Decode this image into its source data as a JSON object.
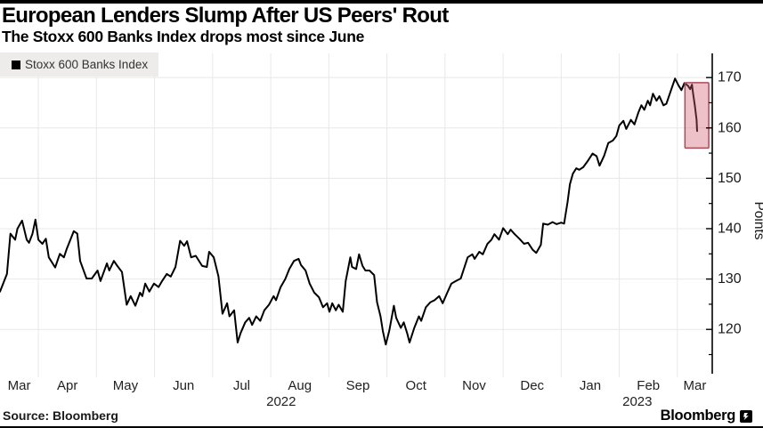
{
  "header": {
    "title": "European Lenders Slump After US Peers' Rout",
    "subtitle": "The Stoxx 600 Banks Index drops most since June"
  },
  "legend": {
    "label": "Stoxx 600 Banks Index",
    "marker_color": "#000000"
  },
  "source": {
    "label": "Source: Bloomberg"
  },
  "branding": {
    "wordmark": "Bloomberg"
  },
  "colors": {
    "accent_bar": "#000000",
    "line": "#000000",
    "grid": "#e8e8e8",
    "axis": "#000000",
    "tick_label": "#1a1a1a",
    "month_label": "#222222",
    "legend_bg": "#edecea",
    "highlight_fill": "#d25b6e",
    "highlight_stroke": "#ae4a57"
  },
  "chart_data": {
    "type": "line",
    "title": "European Lenders Slump After US Peers' Rout",
    "subtitle": "The Stoxx 600 Banks Index drops most since June",
    "ylabel": "Points",
    "grid": true,
    "legend_position": "top-left",
    "x_unit": "months since 2022-03-01 (0 = Mar 1 2022, 12 = Mar 1 2023)",
    "x_range": [
      0.34,
      12.6
    ],
    "ylim": [
      111.2,
      174.8
    ],
    "y_axis": {
      "label": "Points",
      "major_ticks": [
        120,
        130,
        140,
        150,
        160,
        170
      ],
      "minor_ticks": [
        115,
        125,
        135,
        145,
        155,
        165
      ]
    },
    "x_axis": {
      "ticks": [
        {
          "label": "Mar",
          "t": 0.67
        },
        {
          "label": "Apr",
          "t": 1.5
        },
        {
          "label": "May",
          "t": 2.5
        },
        {
          "label": "Jun",
          "t": 3.5
        },
        {
          "label": "Jul",
          "t": 4.5
        },
        {
          "label": "Aug",
          "t": 5.5
        },
        {
          "label": "Sep",
          "t": 6.5
        },
        {
          "label": "Oct",
          "t": 7.5
        },
        {
          "label": "Nov",
          "t": 8.5
        },
        {
          "label": "Dec",
          "t": 9.5
        },
        {
          "label": "Jan",
          "t": 10.5
        },
        {
          "label": "Feb",
          "t": 11.5
        },
        {
          "label": "Mar",
          "t": 12.3
        }
      ],
      "year_labels": [
        {
          "label": "2022",
          "t": 5.18
        },
        {
          "label": "2023",
          "t": 11.31
        }
      ]
    },
    "highlight_box": {
      "t0": 12.13,
      "t1": 12.54,
      "v0": 156.0,
      "v1": 169.0
    },
    "series": [
      {
        "name": "Stoxx 600 Banks Index",
        "color": "#000000",
        "points": [
          [
            0.34,
            127.5
          ],
          [
            0.46,
            131.0
          ],
          [
            0.52,
            139.0
          ],
          [
            0.6,
            137.8
          ],
          [
            0.64,
            140.0
          ],
          [
            0.72,
            141.6
          ],
          [
            0.8,
            137.8
          ],
          [
            0.84,
            137.2
          ],
          [
            0.9,
            139.0
          ],
          [
            0.95,
            141.8
          ],
          [
            1.0,
            137.8
          ],
          [
            1.07,
            137.0
          ],
          [
            1.13,
            138.0
          ],
          [
            1.18,
            134.3
          ],
          [
            1.29,
            132.3
          ],
          [
            1.37,
            135.0
          ],
          [
            1.44,
            134.3
          ],
          [
            1.49,
            136.0
          ],
          [
            1.61,
            139.5
          ],
          [
            1.67,
            139.0
          ],
          [
            1.72,
            133.6
          ],
          [
            1.83,
            130.1
          ],
          [
            1.92,
            130.1
          ],
          [
            2.02,
            131.7
          ],
          [
            2.07,
            129.6
          ],
          [
            2.18,
            133.1
          ],
          [
            2.22,
            131.7
          ],
          [
            2.3,
            133.6
          ],
          [
            2.36,
            132.6
          ],
          [
            2.44,
            131.4
          ],
          [
            2.52,
            124.9
          ],
          [
            2.59,
            126.6
          ],
          [
            2.67,
            124.7
          ],
          [
            2.75,
            127.3
          ],
          [
            2.79,
            126.6
          ],
          [
            2.84,
            129.1
          ],
          [
            2.91,
            127.5
          ],
          [
            2.99,
            129.1
          ],
          [
            3.07,
            128.4
          ],
          [
            3.13,
            129.6
          ],
          [
            3.21,
            131.0
          ],
          [
            3.28,
            130.5
          ],
          [
            3.36,
            132.4
          ],
          [
            3.44,
            137.6
          ],
          [
            3.51,
            136.6
          ],
          [
            3.56,
            137.5
          ],
          [
            3.63,
            134.3
          ],
          [
            3.71,
            134.6
          ],
          [
            3.82,
            132.6
          ],
          [
            3.9,
            132.4
          ],
          [
            3.94,
            135.4
          ],
          [
            4.02,
            134.3
          ],
          [
            4.1,
            130.5
          ],
          [
            4.17,
            123.1
          ],
          [
            4.25,
            125.2
          ],
          [
            4.29,
            122.6
          ],
          [
            4.37,
            123.8
          ],
          [
            4.43,
            117.4
          ],
          [
            4.48,
            119.2
          ],
          [
            4.56,
            121.4
          ],
          [
            4.63,
            122.3
          ],
          [
            4.68,
            120.9
          ],
          [
            4.75,
            122.6
          ],
          [
            4.82,
            121.7
          ],
          [
            4.89,
            123.8
          ],
          [
            4.97,
            124.9
          ],
          [
            5.05,
            126.6
          ],
          [
            5.09,
            125.8
          ],
          [
            5.17,
            128.4
          ],
          [
            5.25,
            130.0
          ],
          [
            5.32,
            132.0
          ],
          [
            5.4,
            133.6
          ],
          [
            5.48,
            134.0
          ],
          [
            5.52,
            132.8
          ],
          [
            5.6,
            131.7
          ],
          [
            5.67,
            129.1
          ],
          [
            5.75,
            127.3
          ],
          [
            5.83,
            126.4
          ],
          [
            5.9,
            124.4
          ],
          [
            5.97,
            125.2
          ],
          [
            6.01,
            123.5
          ],
          [
            6.06,
            125.2
          ],
          [
            6.12,
            123.8
          ],
          [
            6.17,
            124.9
          ],
          [
            6.24,
            123.5
          ],
          [
            6.29,
            129.6
          ],
          [
            6.37,
            134.3
          ],
          [
            6.4,
            132.4
          ],
          [
            6.47,
            132.0
          ],
          [
            6.52,
            134.9
          ],
          [
            6.58,
            132.6
          ],
          [
            6.63,
            131.7
          ],
          [
            6.7,
            131.7
          ],
          [
            6.78,
            130.8
          ],
          [
            6.83,
            125.4
          ],
          [
            6.89,
            122.6
          ],
          [
            6.93,
            119.7
          ],
          [
            6.98,
            117.0
          ],
          [
            7.04,
            119.7
          ],
          [
            7.12,
            124.7
          ],
          [
            7.16,
            122.3
          ],
          [
            7.24,
            120.3
          ],
          [
            7.29,
            121.4
          ],
          [
            7.35,
            119.2
          ],
          [
            7.39,
            117.4
          ],
          [
            7.47,
            120.3
          ],
          [
            7.55,
            122.6
          ],
          [
            7.59,
            121.7
          ],
          [
            7.67,
            124.4
          ],
          [
            7.75,
            125.4
          ],
          [
            7.82,
            125.8
          ],
          [
            7.9,
            126.6
          ],
          [
            7.96,
            125.2
          ],
          [
            8.04,
            127.3
          ],
          [
            8.11,
            129.1
          ],
          [
            8.19,
            129.6
          ],
          [
            8.27,
            130.1
          ],
          [
            8.31,
            131.5
          ],
          [
            8.39,
            134.3
          ],
          [
            8.47,
            134.9
          ],
          [
            8.51,
            134.0
          ],
          [
            8.59,
            135.4
          ],
          [
            8.65,
            134.9
          ],
          [
            8.73,
            137.0
          ],
          [
            8.8,
            137.8
          ],
          [
            8.85,
            138.9
          ],
          [
            8.93,
            137.8
          ],
          [
            9.0,
            140.1
          ],
          [
            9.08,
            138.9
          ],
          [
            9.13,
            139.8
          ],
          [
            9.2,
            138.9
          ],
          [
            9.28,
            138.0
          ],
          [
            9.36,
            137.0
          ],
          [
            9.43,
            137.2
          ],
          [
            9.51,
            135.8
          ],
          [
            9.57,
            135.2
          ],
          [
            9.65,
            136.8
          ],
          [
            9.69,
            141.0
          ],
          [
            9.77,
            140.8
          ],
          [
            9.85,
            141.3
          ],
          [
            9.92,
            140.9
          ],
          [
            10.0,
            141.2
          ],
          [
            10.05,
            141.0
          ],
          [
            10.11,
            145.3
          ],
          [
            10.15,
            148.8
          ],
          [
            10.2,
            150.9
          ],
          [
            10.26,
            152.0
          ],
          [
            10.31,
            151.7
          ],
          [
            10.38,
            152.2
          ],
          [
            10.46,
            153.5
          ],
          [
            10.54,
            154.9
          ],
          [
            10.61,
            154.4
          ],
          [
            10.66,
            152.5
          ],
          [
            10.74,
            154.5
          ],
          [
            10.81,
            157.0
          ],
          [
            10.89,
            157.5
          ],
          [
            10.95,
            158.4
          ],
          [
            11.0,
            160.5
          ],
          [
            11.07,
            161.4
          ],
          [
            11.12,
            159.8
          ],
          [
            11.2,
            161.6
          ],
          [
            11.26,
            160.7
          ],
          [
            11.33,
            163.1
          ],
          [
            11.38,
            164.5
          ],
          [
            11.43,
            163.6
          ],
          [
            11.49,
            165.4
          ],
          [
            11.53,
            164.5
          ],
          [
            11.58,
            166.8
          ],
          [
            11.64,
            165.4
          ],
          [
            11.69,
            166.3
          ],
          [
            11.76,
            164.5
          ],
          [
            11.81,
            164.8
          ],
          [
            11.89,
            167.5
          ],
          [
            11.96,
            169.8
          ],
          [
            12.02,
            168.4
          ],
          [
            12.07,
            167.5
          ],
          [
            12.12,
            168.9
          ],
          [
            12.18,
            168.4
          ],
          [
            12.22,
            167.7
          ],
          [
            12.25,
            168.6
          ],
          [
            12.27,
            166.8
          ],
          [
            12.3,
            164.5
          ],
          [
            12.33,
            161.6
          ],
          [
            12.34,
            159.4
          ]
        ]
      }
    ]
  }
}
